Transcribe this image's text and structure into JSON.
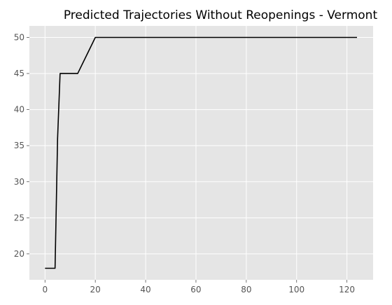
{
  "chart_data": {
    "type": "line",
    "title": "Predicted Trajectories Without Reopenings - Vermont",
    "xlabel": "",
    "ylabel": "",
    "xlim": [
      -6.2,
      130.4
    ],
    "ylim": [
      16.4,
      51.6
    ],
    "xticks": [
      0,
      20,
      40,
      60,
      80,
      100,
      120
    ],
    "yticks": [
      20,
      25,
      30,
      35,
      40,
      45,
      50
    ],
    "grid": true,
    "series": [
      {
        "x": [
          0,
          4,
          5,
          6,
          13,
          20,
          124
        ],
        "y": [
          18,
          18,
          36,
          45,
          45,
          50,
          50
        ],
        "color": "#000000"
      }
    ]
  },
  "colors": {
    "plot_background": "#e5e5e5",
    "grid": "#ffffff",
    "line": "#000000",
    "tick_text": "#555555"
  }
}
